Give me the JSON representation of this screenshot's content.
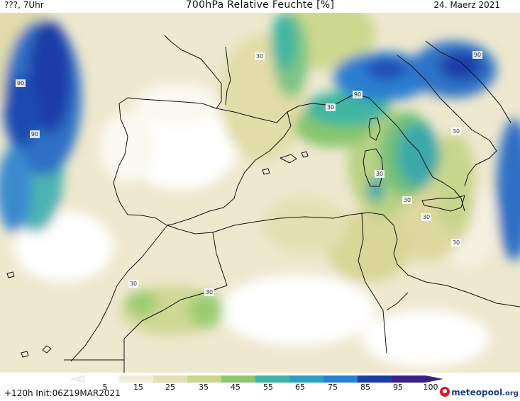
{
  "header": {
    "left": "???, 7Uhr",
    "title": "700hPa Relative Feuchte [%]",
    "date": "24. Maerz 2021"
  },
  "map": {
    "region": "Western Mediterranean",
    "contour_labels": [
      "30",
      "30",
      "90",
      "90",
      "90",
      "90",
      "30",
      "30",
      "30",
      "30",
      "30",
      "30",
      "30"
    ],
    "colors": {
      "very_dry": "#ffffff",
      "dry": "#f1ecd7",
      "low": "#e4dfb1",
      "mid_low": "#c7d68b",
      "mid": "#8cc86b",
      "moist": "#3fb6a1",
      "wet": "#2a7fd0",
      "very_wet": "#1a3ea8",
      "saturated": "#3b1f8a",
      "coast": "#111111"
    }
  },
  "legend": {
    "ticks": [
      "5",
      "15",
      "25",
      "35",
      "45",
      "55",
      "65",
      "75",
      "85",
      "95",
      "100"
    ],
    "run_info": "+120h Init:06Z19MAR2021",
    "brand": "meteopool",
    "brand_suffix": ".org"
  }
}
